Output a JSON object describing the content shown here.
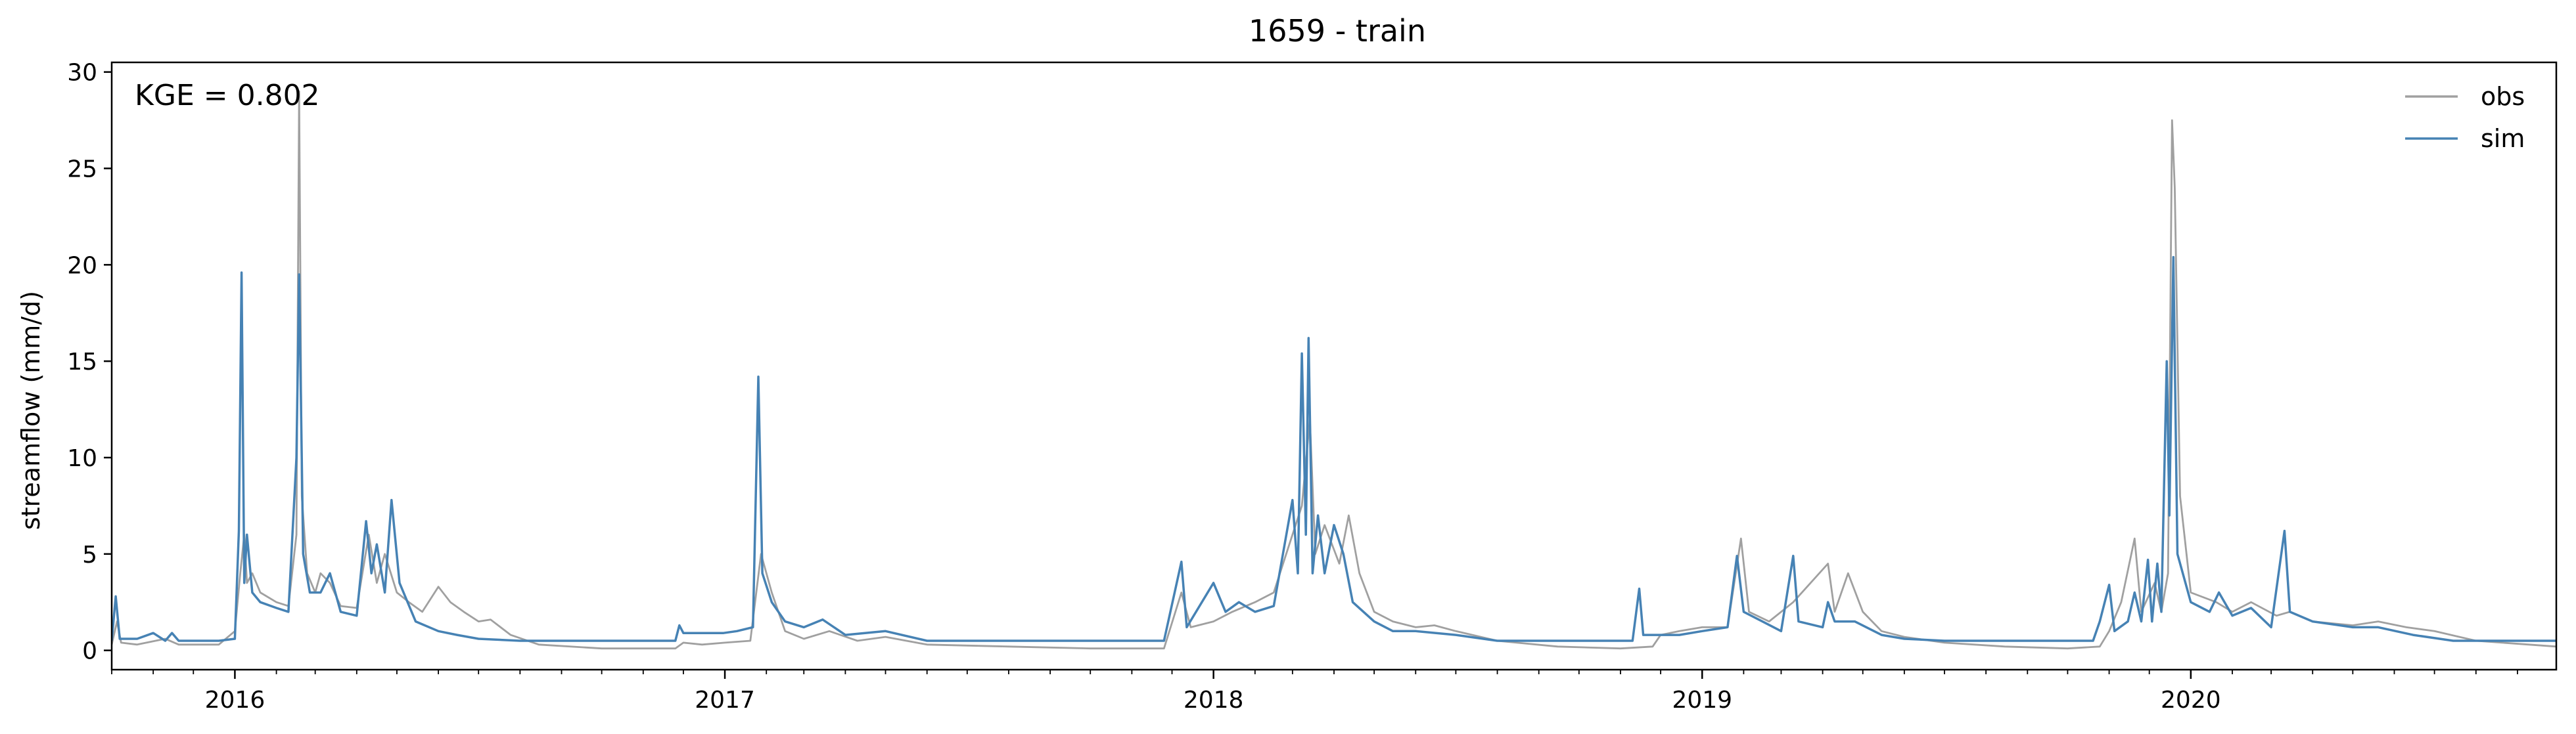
{
  "chart_data": {
    "type": "line",
    "title": "1659 - train",
    "xlabel": "",
    "ylabel": "streamflow (mm/d)",
    "annotation": "KGE = 0.802",
    "xlim": [
      "2015-10-01",
      "2020-09-30"
    ],
    "ylim": [
      -1,
      30.5
    ],
    "yticks": [
      0,
      5,
      10,
      15,
      20,
      25,
      30
    ],
    "xticks": [
      {
        "date": "2016-01-01",
        "label": "2016"
      },
      {
        "date": "2017-01-01",
        "label": "2017"
      },
      {
        "date": "2018-01-01",
        "label": "2018"
      },
      {
        "date": "2019-01-01",
        "label": "2019"
      },
      {
        "date": "2020-01-01",
        "label": "2020"
      }
    ],
    "grid": false,
    "legend_position": "top-right",
    "series": [
      {
        "name": "obs",
        "color": "#a0a0a0",
        "points": [
          [
            "2015-10-01",
            0.3
          ],
          [
            "2015-10-05",
            1.5
          ],
          [
            "2015-10-08",
            0.4
          ],
          [
            "2015-10-20",
            0.3
          ],
          [
            "2015-11-10",
            0.6
          ],
          [
            "2015-11-20",
            0.3
          ],
          [
            "2015-12-20",
            0.3
          ],
          [
            "2016-01-01",
            1.0
          ],
          [
            "2016-01-05",
            4.0
          ],
          [
            "2016-01-08",
            6.0
          ],
          [
            "2016-01-10",
            3.5
          ],
          [
            "2016-01-14",
            4.0
          ],
          [
            "2016-01-20",
            3.0
          ],
          [
            "2016-02-01",
            2.5
          ],
          [
            "2016-02-10",
            2.3
          ],
          [
            "2016-02-16",
            6.0
          ],
          [
            "2016-02-18",
            29.0
          ],
          [
            "2016-02-20",
            8.0
          ],
          [
            "2016-02-24",
            4.0
          ],
          [
            "2016-03-01",
            3.0
          ],
          [
            "2016-03-05",
            4.0
          ],
          [
            "2016-03-12",
            3.5
          ],
          [
            "2016-03-20",
            2.3
          ],
          [
            "2016-04-01",
            2.2
          ],
          [
            "2016-04-10",
            6.0
          ],
          [
            "2016-04-16",
            3.5
          ],
          [
            "2016-04-22",
            5.0
          ],
          [
            "2016-05-01",
            3.0
          ],
          [
            "2016-05-10",
            2.5
          ],
          [
            "2016-05-20",
            2.0
          ],
          [
            "2016-06-01",
            3.3
          ],
          [
            "2016-06-10",
            2.5
          ],
          [
            "2016-06-20",
            2.0
          ],
          [
            "2016-07-01",
            1.5
          ],
          [
            "2016-07-10",
            1.6
          ],
          [
            "2016-07-25",
            0.8
          ],
          [
            "2016-08-15",
            0.3
          ],
          [
            "2016-10-01",
            0.1
          ],
          [
            "2016-11-25",
            0.1
          ],
          [
            "2016-12-01",
            0.4
          ],
          [
            "2016-12-15",
            0.3
          ],
          [
            "2017-01-01",
            0.4
          ],
          [
            "2017-01-20",
            0.5
          ],
          [
            "2017-01-28",
            5.0
          ],
          [
            "2017-02-05",
            3.0
          ],
          [
            "2017-02-15",
            1.0
          ],
          [
            "2017-03-01",
            0.6
          ],
          [
            "2017-03-20",
            1.0
          ],
          [
            "2017-04-10",
            0.5
          ],
          [
            "2017-05-01",
            0.7
          ],
          [
            "2017-06-01",
            0.3
          ],
          [
            "2017-08-01",
            0.2
          ],
          [
            "2017-10-01",
            0.1
          ],
          [
            "2017-11-25",
            0.1
          ],
          [
            "2017-12-08",
            3.0
          ],
          [
            "2017-12-15",
            1.2
          ],
          [
            "2018-01-01",
            1.5
          ],
          [
            "2018-01-15",
            2.0
          ],
          [
            "2018-02-01",
            2.5
          ],
          [
            "2018-02-15",
            3.0
          ],
          [
            "2018-03-01",
            6.0
          ],
          [
            "2018-03-08",
            7.5
          ],
          [
            "2018-03-14",
            12.0
          ],
          [
            "2018-03-18",
            5.0
          ],
          [
            "2018-03-25",
            6.5
          ],
          [
            "2018-04-05",
            4.5
          ],
          [
            "2018-04-12",
            7.0
          ],
          [
            "2018-04-20",
            4.0
          ],
          [
            "2018-05-01",
            2.0
          ],
          [
            "2018-05-15",
            1.5
          ],
          [
            "2018-06-01",
            1.2
          ],
          [
            "2018-06-15",
            1.3
          ],
          [
            "2018-07-01",
            1.0
          ],
          [
            "2018-08-01",
            0.5
          ],
          [
            "2018-09-15",
            0.2
          ],
          [
            "2018-11-01",
            0.1
          ],
          [
            "2018-11-25",
            0.2
          ],
          [
            "2018-12-01",
            0.8
          ],
          [
            "2018-12-15",
            1.0
          ],
          [
            "2019-01-01",
            1.2
          ],
          [
            "2019-01-20",
            1.2
          ],
          [
            "2019-01-30",
            5.8
          ],
          [
            "2019-02-05",
            2.0
          ],
          [
            "2019-02-20",
            1.5
          ],
          [
            "2019-03-10",
            2.5
          ],
          [
            "2019-04-05",
            4.5
          ],
          [
            "2019-04-10",
            2.0
          ],
          [
            "2019-04-20",
            4.0
          ],
          [
            "2019-05-01",
            2.0
          ],
          [
            "2019-05-15",
            1.0
          ],
          [
            "2019-06-01",
            0.7
          ],
          [
            "2019-07-01",
            0.4
          ],
          [
            "2019-08-15",
            0.2
          ],
          [
            "2019-10-01",
            0.1
          ],
          [
            "2019-10-25",
            0.2
          ],
          [
            "2019-11-01",
            1.0
          ],
          [
            "2019-11-10",
            2.5
          ],
          [
            "2019-11-20",
            5.8
          ],
          [
            "2019-11-25",
            2.0
          ],
          [
            "2019-12-05",
            3.5
          ],
          [
            "2019-12-10",
            2.0
          ],
          [
            "2019-12-15",
            4.0
          ],
          [
            "2019-12-18",
            27.5
          ],
          [
            "2019-12-20",
            24.0
          ],
          [
            "2019-12-24",
            8.0
          ],
          [
            "2020-01-01",
            3.0
          ],
          [
            "2020-01-20",
            2.5
          ],
          [
            "2020-02-01",
            2.0
          ],
          [
            "2020-02-15",
            2.5
          ],
          [
            "2020-03-05",
            1.8
          ],
          [
            "2020-03-15",
            2.0
          ],
          [
            "2020-04-01",
            1.5
          ],
          [
            "2020-05-01",
            1.3
          ],
          [
            "2020-05-20",
            1.5
          ],
          [
            "2020-06-10",
            1.2
          ],
          [
            "2020-07-01",
            1.0
          ],
          [
            "2020-08-01",
            0.5
          ],
          [
            "2020-09-30",
            0.2
          ]
        ]
      },
      {
        "name": "sim",
        "color": "#4682b4",
        "points": [
          [
            "2015-10-01",
            0.5
          ],
          [
            "2015-10-04",
            2.8
          ],
          [
            "2015-10-07",
            0.6
          ],
          [
            "2015-10-20",
            0.6
          ],
          [
            "2015-11-01",
            0.9
          ],
          [
            "2015-11-10",
            0.5
          ],
          [
            "2015-11-15",
            0.9
          ],
          [
            "2015-11-20",
            0.5
          ],
          [
            "2015-12-20",
            0.5
          ],
          [
            "2016-01-01",
            0.6
          ],
          [
            "2016-01-04",
            6.2
          ],
          [
            "2016-01-06",
            19.6
          ],
          [
            "2016-01-08",
            3.5
          ],
          [
            "2016-01-10",
            6.0
          ],
          [
            "2016-01-14",
            3.0
          ],
          [
            "2016-01-20",
            2.5
          ],
          [
            "2016-02-01",
            2.2
          ],
          [
            "2016-02-10",
            2.0
          ],
          [
            "2016-02-16",
            10.0
          ],
          [
            "2016-02-18",
            19.5
          ],
          [
            "2016-02-21",
            5.0
          ],
          [
            "2016-02-26",
            3.0
          ],
          [
            "2016-03-05",
            3.0
          ],
          [
            "2016-03-12",
            4.0
          ],
          [
            "2016-03-20",
            2.0
          ],
          [
            "2016-04-01",
            1.8
          ],
          [
            "2016-04-08",
            6.7
          ],
          [
            "2016-04-12",
            4.0
          ],
          [
            "2016-04-16",
            5.5
          ],
          [
            "2016-04-22",
            3.0
          ],
          [
            "2016-04-27",
            7.8
          ],
          [
            "2016-05-03",
            3.5
          ],
          [
            "2016-05-15",
            1.5
          ],
          [
            "2016-06-01",
            1.0
          ],
          [
            "2016-06-15",
            0.8
          ],
          [
            "2016-07-01",
            0.6
          ],
          [
            "2016-08-01",
            0.5
          ],
          [
            "2016-10-01",
            0.5
          ],
          [
            "2016-11-25",
            0.5
          ],
          [
            "2016-11-28",
            1.3
          ],
          [
            "2016-12-01",
            0.9
          ],
          [
            "2016-12-31",
            0.9
          ],
          [
            "2017-01-10",
            1.0
          ],
          [
            "2017-01-22",
            1.2
          ],
          [
            "2017-01-26",
            14.2
          ],
          [
            "2017-01-29",
            4.0
          ],
          [
            "2017-02-05",
            2.5
          ],
          [
            "2017-02-15",
            1.5
          ],
          [
            "2017-03-01",
            1.2
          ],
          [
            "2017-03-15",
            1.6
          ],
          [
            "2017-04-01",
            0.8
          ],
          [
            "2017-05-01",
            1.0
          ],
          [
            "2017-06-01",
            0.5
          ],
          [
            "2017-08-01",
            0.5
          ],
          [
            "2017-10-01",
            0.5
          ],
          [
            "2017-11-25",
            0.5
          ],
          [
            "2017-12-08",
            4.6
          ],
          [
            "2017-12-12",
            1.2
          ],
          [
            "2018-01-01",
            3.5
          ],
          [
            "2018-01-10",
            2.0
          ],
          [
            "2018-01-20",
            2.5
          ],
          [
            "2018-02-01",
            2.0
          ],
          [
            "2018-02-15",
            2.3
          ],
          [
            "2018-03-01",
            7.8
          ],
          [
            "2018-03-05",
            4.0
          ],
          [
            "2018-03-08",
            15.4
          ],
          [
            "2018-03-11",
            6.0
          ],
          [
            "2018-03-13",
            16.2
          ],
          [
            "2018-03-16",
            4.0
          ],
          [
            "2018-03-20",
            7.0
          ],
          [
            "2018-03-25",
            4.0
          ],
          [
            "2018-04-01",
            6.5
          ],
          [
            "2018-04-08",
            5.0
          ],
          [
            "2018-04-15",
            2.5
          ],
          [
            "2018-05-01",
            1.5
          ],
          [
            "2018-05-15",
            1.0
          ],
          [
            "2018-06-01",
            1.0
          ],
          [
            "2018-07-01",
            0.8
          ],
          [
            "2018-08-01",
            0.5
          ],
          [
            "2018-10-01",
            0.5
          ],
          [
            "2018-11-10",
            0.5
          ],
          [
            "2018-11-15",
            3.2
          ],
          [
            "2018-11-18",
            0.8
          ],
          [
            "2018-12-15",
            0.8
          ],
          [
            "2019-01-01",
            1.0
          ],
          [
            "2019-01-20",
            1.2
          ],
          [
            "2019-01-27",
            4.9
          ],
          [
            "2019-02-01",
            2.0
          ],
          [
            "2019-02-15",
            1.5
          ],
          [
            "2019-03-01",
            1.0
          ],
          [
            "2019-03-10",
            4.9
          ],
          [
            "2019-03-14",
            1.5
          ],
          [
            "2019-04-01",
            1.2
          ],
          [
            "2019-04-05",
            2.5
          ],
          [
            "2019-04-10",
            1.5
          ],
          [
            "2019-04-25",
            1.5
          ],
          [
            "2019-05-15",
            0.8
          ],
          [
            "2019-06-01",
            0.6
          ],
          [
            "2019-07-01",
            0.5
          ],
          [
            "2019-09-01",
            0.5
          ],
          [
            "2019-10-20",
            0.5
          ],
          [
            "2019-10-25",
            1.5
          ],
          [
            "2019-11-01",
            3.4
          ],
          [
            "2019-11-05",
            1.0
          ],
          [
            "2019-11-15",
            1.5
          ],
          [
            "2019-11-20",
            3.0
          ],
          [
            "2019-11-25",
            1.5
          ],
          [
            "2019-11-30",
            4.7
          ],
          [
            "2019-12-03",
            1.5
          ],
          [
            "2019-12-07",
            4.5
          ],
          [
            "2019-12-10",
            2.0
          ],
          [
            "2019-12-14",
            15.0
          ],
          [
            "2019-12-16",
            7.0
          ],
          [
            "2019-12-19",
            20.4
          ],
          [
            "2019-12-22",
            5.0
          ],
          [
            "2020-01-01",
            2.5
          ],
          [
            "2020-01-15",
            2.0
          ],
          [
            "2020-01-22",
            3.0
          ],
          [
            "2020-02-01",
            1.8
          ],
          [
            "2020-02-15",
            2.2
          ],
          [
            "2020-03-01",
            1.2
          ],
          [
            "2020-03-11",
            6.2
          ],
          [
            "2020-03-15",
            2.0
          ],
          [
            "2020-04-01",
            1.5
          ],
          [
            "2020-05-01",
            1.2
          ],
          [
            "2020-05-20",
            1.2
          ],
          [
            "2020-06-15",
            0.8
          ],
          [
            "2020-07-15",
            0.5
          ],
          [
            "2020-09-30",
            0.5
          ]
        ]
      }
    ]
  }
}
